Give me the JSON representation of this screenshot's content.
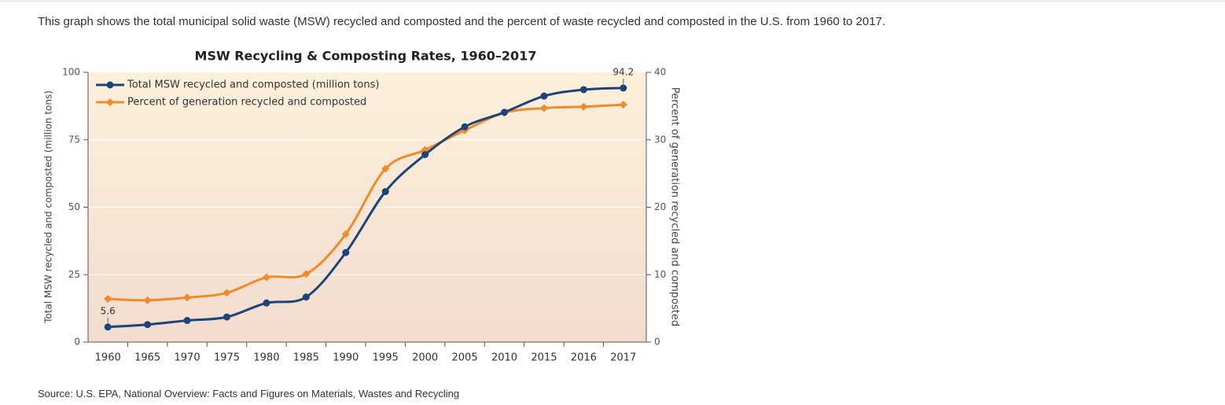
{
  "description": "This graph shows the total municipal solid waste (MSW) recycled and composted and the percent of waste recycled and composted in the U.S. from 1960 to 2017.",
  "chart_data": {
    "type": "line",
    "title": "MSW Recycling & Composting Rates, 1960–2017",
    "y_label": "Total MSW recycled and composted (million tons)",
    "y2_label": "Percent of generation recycled and composted",
    "categories": [
      "1960",
      "1965",
      "1970",
      "1975",
      "1980",
      "1985",
      "1990",
      "1995",
      "2000",
      "2005",
      "2010",
      "2015",
      "2016",
      "2017"
    ],
    "series": [
      {
        "name": "Total MSW recycled and composted (million tons)",
        "color": "#1c4479",
        "marker": "circle",
        "values": [
          5.6,
          6.5,
          8.0,
          9.3,
          14.5,
          16.7,
          33.2,
          55.8,
          69.5,
          79.8,
          85.2,
          91.2,
          93.6,
          94.2
        ]
      },
      {
        "name": "Percent of generation recycled and composted",
        "color": "#f18a2a",
        "marker": "diamond",
        "axis": "y2",
        "values": [
          6.4,
          6.2,
          6.6,
          7.3,
          9.6,
          10.1,
          16.0,
          25.7,
          28.5,
          31.4,
          34.0,
          34.7,
          34.9,
          35.2
        ]
      }
    ],
    "ylim": [
      0,
      100
    ],
    "yticks": [
      0,
      25,
      50,
      75,
      100
    ],
    "y2lim": [
      0,
      40
    ],
    "y2ticks": [
      0,
      10,
      20,
      30,
      40
    ],
    "grid": true,
    "legend": "upper left",
    "smooth": true
  },
  "source": "Source: U.S. EPA, National Overview: Facts and Figures on Materials, Wastes and Recycling"
}
